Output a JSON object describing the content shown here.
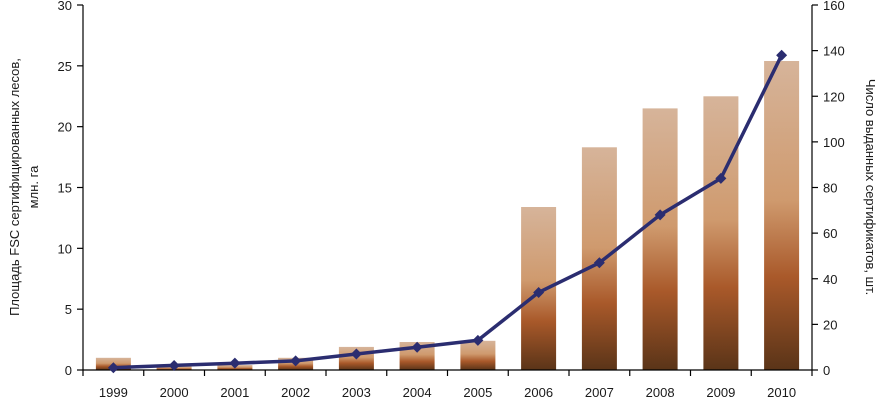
{
  "chart_data": {
    "type": "bar",
    "title": "",
    "categories": [
      "1999",
      "2000",
      "2001",
      "2002",
      "2003",
      "2004",
      "2005",
      "2006",
      "2007",
      "2008",
      "2009",
      "2010"
    ],
    "left_axis": {
      "label_line1": "Площадь FSC сертифицированных лесов,",
      "label_line2": "млн. га",
      "ylim": [
        0,
        30
      ],
      "ticks": [
        "0",
        "5",
        "10",
        "15",
        "20",
        "25",
        "30"
      ]
    },
    "right_axis": {
      "label": "Число выданных сертификатов, шт.",
      "ylim": [
        0,
        160
      ],
      "ticks": [
        "0",
        "20",
        "40",
        "60",
        "80",
        "100",
        "120",
        "140",
        "160"
      ]
    },
    "series": [
      {
        "type": "bar",
        "axis": "left",
        "values": [
          1.0,
          0.3,
          0.4,
          1.0,
          1.9,
          2.3,
          2.4,
          13.4,
          18.3,
          21.5,
          22.5,
          25.4
        ]
      },
      {
        "type": "line",
        "axis": "right",
        "values": [
          1,
          2,
          3,
          4,
          7,
          10,
          13,
          34,
          47,
          68,
          84,
          138
        ]
      }
    ],
    "colors": {
      "bar_top": "#d6b49a",
      "bar_mid": "#a9592a",
      "bar_bottom": "#5a3418",
      "line": "#2b2d70"
    },
    "grid": false
  }
}
